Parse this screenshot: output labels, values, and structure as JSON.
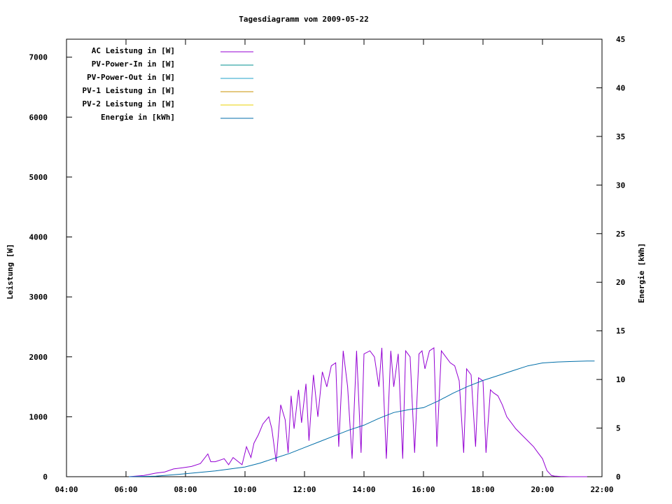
{
  "chart_data": {
    "type": "line",
    "title": "Tagesdiagramm vom 2009-05-22",
    "ylabel": "Leistung [W]",
    "y2label": "Energie [kWh]",
    "xlim": [
      4,
      22
    ],
    "ylim": [
      0,
      7300
    ],
    "y2lim": [
      0,
      45
    ],
    "grid": false,
    "legend_position": "top-left",
    "x_ticks": [
      "04:00",
      "06:00",
      "08:00",
      "10:00",
      "12:00",
      "14:00",
      "16:00",
      "18:00",
      "20:00",
      "22:00"
    ],
    "y_ticks": [
      "0",
      "1000",
      "2000",
      "3000",
      "4000",
      "5000",
      "6000",
      "7000"
    ],
    "y2_ticks": [
      "0",
      "5",
      "10",
      "15",
      "20",
      "25",
      "30",
      "35",
      "40",
      "45"
    ],
    "series": [
      {
        "name": "AC Leistung in [W]",
        "color": "#9400d3",
        "axis": "left",
        "x": [
          6.1,
          6.6,
          7.0,
          7.3,
          7.6,
          7.9,
          8.2,
          8.5,
          8.75,
          8.85,
          9.0,
          9.3,
          9.45,
          9.6,
          9.9,
          10.05,
          10.2,
          10.3,
          10.45,
          10.6,
          10.8,
          10.9,
          11.05,
          11.2,
          11.35,
          11.45,
          11.55,
          11.65,
          11.8,
          11.9,
          12.05,
          12.15,
          12.3,
          12.45,
          12.6,
          12.75,
          12.9,
          13.05,
          13.15,
          13.3,
          13.45,
          13.6,
          13.75,
          13.9,
          14.0,
          14.2,
          14.35,
          14.5,
          14.6,
          14.75,
          14.9,
          15.0,
          15.15,
          15.3,
          15.4,
          15.55,
          15.7,
          15.85,
          15.95,
          16.05,
          16.2,
          16.35,
          16.45,
          16.6,
          16.75,
          16.9,
          17.05,
          17.2,
          17.35,
          17.45,
          17.6,
          17.75,
          17.85,
          18.0,
          18.1,
          18.25,
          18.35,
          18.5,
          18.65,
          18.8,
          18.95,
          19.1,
          19.3,
          19.5,
          19.7,
          19.85,
          20.0,
          20.15,
          20.3,
          20.4,
          20.6,
          20.9,
          21.2,
          21.5
        ],
        "values": [
          0,
          20,
          60,
          80,
          130,
          150,
          170,
          220,
          380,
          250,
          250,
          300,
          200,
          320,
          200,
          500,
          320,
          560,
          700,
          880,
          1000,
          800,
          250,
          1200,
          950,
          400,
          1350,
          800,
          1450,
          900,
          1550,
          600,
          1700,
          1000,
          1750,
          1500,
          1850,
          1900,
          500,
          2100,
          1500,
          300,
          2100,
          400,
          2050,
          2100,
          2000,
          1500,
          2150,
          300,
          2100,
          1500,
          2050,
          300,
          2100,
          2000,
          400,
          2050,
          2100,
          1800,
          2100,
          2150,
          500,
          2100,
          2000,
          1900,
          1850,
          1600,
          400,
          1800,
          1700,
          500,
          1650,
          1600,
          400,
          1450,
          1400,
          1350,
          1200,
          1000,
          900,
          800,
          700,
          600,
          500,
          400,
          300,
          100,
          20,
          10,
          5,
          0,
          0,
          0
        ]
      },
      {
        "name": "PV-Power-In in [W]",
        "color": "#009090",
        "axis": "left",
        "values": []
      },
      {
        "name": "PV-Power-Out in [W]",
        "color": "#20a0c8",
        "axis": "left",
        "values": []
      },
      {
        "name": "PV-1 Leistung in [W]",
        "color": "#c89000",
        "axis": "left",
        "values": []
      },
      {
        "name": "PV-2 Leistung in [W]",
        "color": "#e8d000",
        "axis": "left",
        "values": []
      },
      {
        "name": "Energie in [kWh]",
        "color": "#006ea8",
        "axis": "right",
        "x": [
          6.1,
          7.0,
          8.0,
          9.0,
          10.0,
          10.5,
          11.0,
          11.5,
          12.0,
          12.5,
          13.0,
          13.5,
          14.0,
          14.5,
          15.0,
          15.5,
          16.0,
          16.5,
          17.0,
          17.5,
          18.0,
          18.5,
          19.0,
          19.5,
          20.0,
          20.5,
          21.0,
          21.5,
          21.75
        ],
        "values": [
          0,
          0.05,
          0.3,
          0.6,
          1.0,
          1.4,
          1.9,
          2.4,
          3.0,
          3.6,
          4.2,
          4.8,
          5.3,
          6.0,
          6.6,
          6.9,
          7.1,
          7.8,
          8.6,
          9.3,
          9.9,
          10.4,
          10.9,
          11.4,
          11.7,
          11.8,
          11.85,
          11.9,
          11.9
        ]
      }
    ]
  }
}
